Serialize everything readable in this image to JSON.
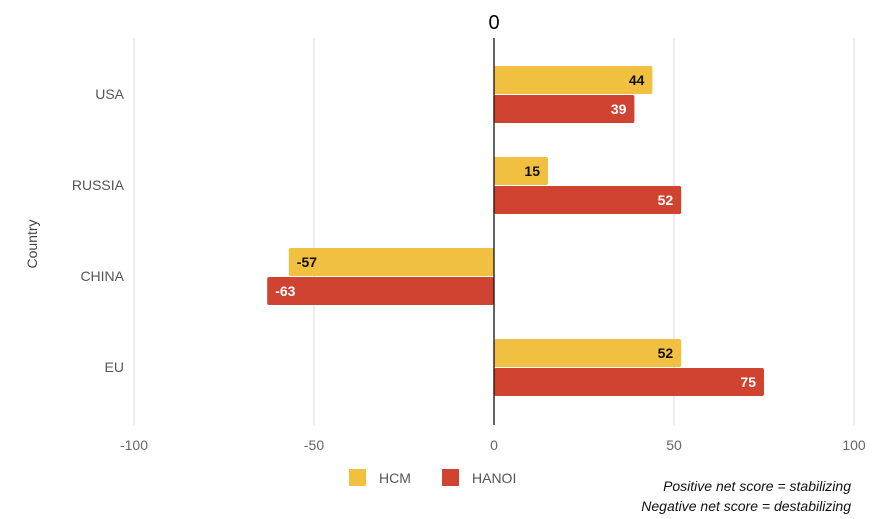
{
  "chart_data": {
    "type": "bar",
    "orientation": "horizontal",
    "title": "",
    "xlabel": "",
    "ylabel": "Country",
    "zero_annotation": "0",
    "categories": [
      "USA",
      "RUSSIA",
      "CHINA",
      "EU"
    ],
    "series": [
      {
        "name": "HCM",
        "color": "#F1C040",
        "values": [
          44,
          15,
          -57,
          52
        ]
      },
      {
        "name": "HANOI",
        "color": "#CF4330",
        "values": [
          39,
          52,
          -63,
          75
        ]
      }
    ],
    "xlim": [
      -100,
      100
    ],
    "xticks": [
      -100,
      -50,
      0,
      50,
      100
    ],
    "grid": true,
    "legend_position": "bottom"
  },
  "notes": {
    "positive": "Positive net score = stabilizing",
    "negative": "Negative net score = destabilizing"
  }
}
